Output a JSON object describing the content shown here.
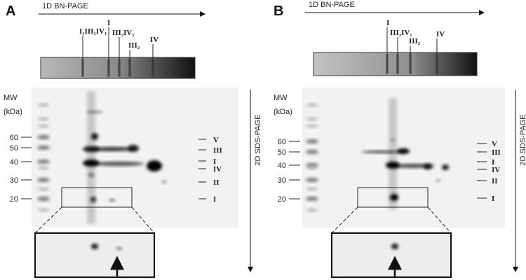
{
  "panels": [
    {
      "letter": "A",
      "bn_label": "1D BN-PAGE",
      "band_labels": [
        "I₁III₂IV₁",
        "I",
        "III₂IV₁",
        "III₂",
        "IV"
      ],
      "mw_label": "MW",
      "mw_unit": "(kDa)",
      "mw_markers": [
        60,
        50,
        40,
        30,
        20
      ],
      "complex_labels": [
        "V",
        "III",
        "I",
        "IV",
        "II",
        "I"
      ],
      "sds_label": "2D SDS-PAGE"
    },
    {
      "letter": "B",
      "bn_label": "1D BN-PAGE",
      "band_labels": [
        "I",
        "III₂IV₁",
        "III₂",
        "IV"
      ],
      "mw_label": "MW",
      "mw_unit": "(kDa)",
      "mw_markers": [
        60,
        50,
        40,
        30,
        20
      ],
      "complex_labels": [
        "V",
        "III",
        "I",
        "IV",
        "II",
        "I"
      ],
      "sds_label": "2D SDS-PAGE"
    }
  ]
}
